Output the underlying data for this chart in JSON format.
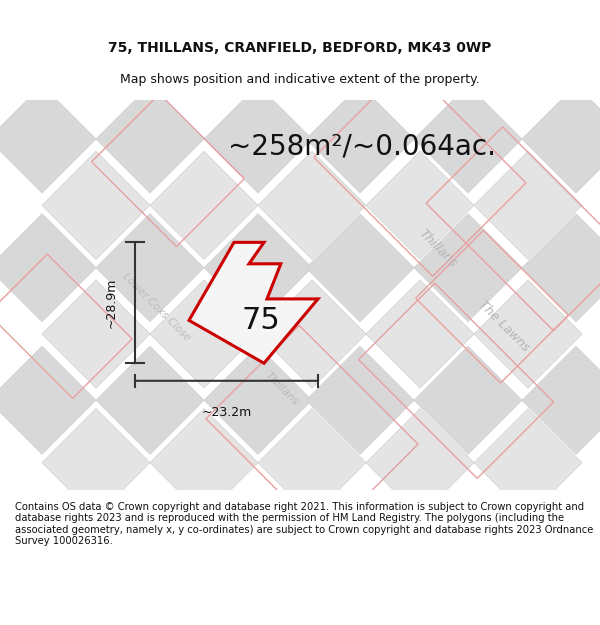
{
  "title_line1": "75, THILLANS, CRANFIELD, BEDFORD, MK43 0WP",
  "title_line2": "Map shows position and indicative extent of the property.",
  "area_label": "~258m²/~0.064ac.",
  "width_label": "~23.2m",
  "height_label": "~28.9m",
  "number_label": "75",
  "footer_text": "Contains OS data © Crown copyright and database right 2021. This information is subject to Crown copyright and database rights 2023 and is reproduced with the permission of HM Land Registry. The polygons (including the associated geometry, namely x, y co-ordinates) are subject to Crown copyright and database rights 2023 Ordnance Survey 100026316.",
  "title_fontsize": 10,
  "subtitle_fontsize": 9,
  "area_fontsize": 20,
  "dim_fontsize": 9,
  "number_fontsize": 22,
  "footer_fontsize": 7.2,
  "street_label_color": "#b0b0b0",
  "dim_color": "#333333",
  "map_bg": "#efefef",
  "tile_color_dark": "#d8d8d8",
  "tile_color_light": "#e6e6e6",
  "plot_color": "#cc0000",
  "plot_fill": "#f5f5f5",
  "red_parcel_color": "#e8a0a0"
}
